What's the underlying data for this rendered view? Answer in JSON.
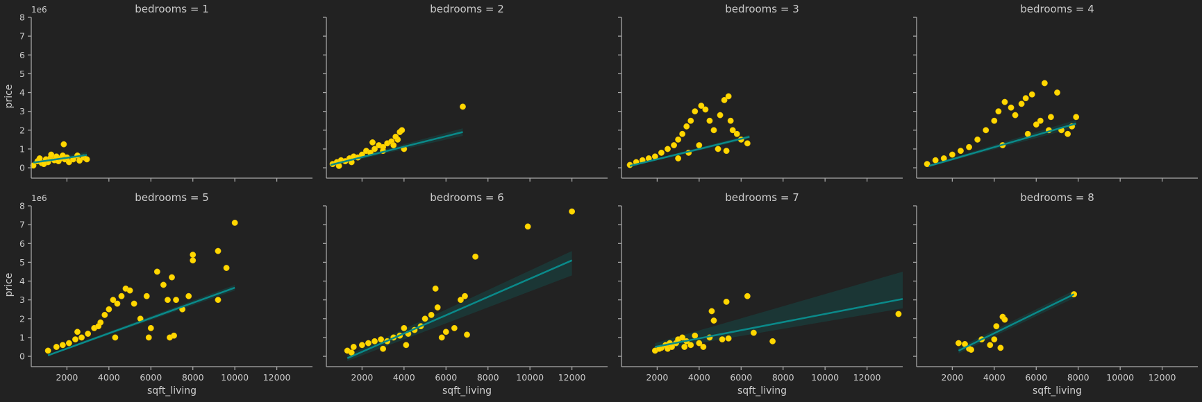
{
  "colors": {
    "background": "#222222",
    "points": "#ffd700",
    "fit_line": "#0a8a8a",
    "ci_band": "#1a3a38",
    "axis": "#aaaaaa",
    "text": "#cccccc"
  },
  "chart_data": {
    "type": "scatter",
    "facet_variable": "bedrooms",
    "layout": {
      "rows": 2,
      "cols": 4
    },
    "shared_axes": {
      "sharex": true,
      "sharey": true
    },
    "xlabel": "sqft_living",
    "ylabel": "price",
    "y_offset_text": "1e6",
    "xlim": [
      300,
      13700
    ],
    "ylim": [
      -0.55,
      8.0
    ],
    "x_ticks": [
      2000,
      4000,
      6000,
      8000,
      10000,
      12000
    ],
    "x_tick_labels": [
      "2000",
      "4000",
      "6000",
      "8000",
      "10000",
      "12000"
    ],
    "y_ticks": [
      0,
      1,
      2,
      3,
      4,
      5,
      6,
      7,
      8
    ],
    "y_tick_labels": [
      "0",
      "1",
      "2",
      "3",
      "4",
      "5",
      "6",
      "7",
      "8"
    ],
    "grid": false,
    "panels": [
      {
        "title": "bedrooms = 1",
        "points": [
          [
            400,
            0.12
          ],
          [
            600,
            0.35
          ],
          [
            800,
            0.25
          ],
          [
            1000,
            0.45
          ],
          [
            1100,
            0.3
          ],
          [
            1200,
            0.5
          ],
          [
            1300,
            0.55
          ],
          [
            1400,
            0.4
          ],
          [
            1500,
            0.6
          ],
          [
            1600,
            0.35
          ],
          [
            1700,
            0.5
          ],
          [
            1800,
            0.65
          ],
          [
            1900,
            0.45
          ],
          [
            2000,
            0.55
          ],
          [
            1850,
            1.25
          ],
          [
            2100,
            0.3
          ],
          [
            2300,
            0.45
          ],
          [
            2500,
            0.65
          ],
          [
            2600,
            0.38
          ],
          [
            2800,
            0.55
          ],
          [
            2950,
            0.45
          ],
          [
            900,
            0.2
          ],
          [
            1250,
            0.7
          ],
          [
            700,
            0.5
          ]
        ],
        "fit": [
          [
            400,
            0.28
          ],
          [
            2950,
            0.68
          ]
        ],
        "ci": [
          [
            400,
            0.22,
            0.34
          ],
          [
            2950,
            0.52,
            0.84
          ]
        ]
      },
      {
        "title": "bedrooms = 2",
        "points": [
          [
            600,
            0.2
          ],
          [
            800,
            0.3
          ],
          [
            1000,
            0.4
          ],
          [
            1200,
            0.35
          ],
          [
            1400,
            0.5
          ],
          [
            1600,
            0.6
          ],
          [
            1800,
            0.55
          ],
          [
            2000,
            0.7
          ],
          [
            2200,
            0.9
          ],
          [
            2400,
            0.8
          ],
          [
            2600,
            1.0
          ],
          [
            2800,
            1.2
          ],
          [
            3000,
            1.1
          ],
          [
            3200,
            1.3
          ],
          [
            3400,
            1.4
          ],
          [
            3500,
            1.2
          ],
          [
            3700,
            1.5
          ],
          [
            3800,
            1.9
          ],
          [
            3900,
            2.0
          ],
          [
            4000,
            1.0
          ],
          [
            3600,
            1.65
          ],
          [
            3000,
            0.9
          ],
          [
            2500,
            1.35
          ],
          [
            1500,
            0.3
          ],
          [
            6800,
            3.25
          ],
          [
            900,
            0.1
          ]
        ],
        "fit": [
          [
            500,
            0.15
          ],
          [
            6800,
            1.9
          ]
        ],
        "ci": [
          [
            500,
            0.1,
            0.2
          ],
          [
            6800,
            1.7,
            2.1
          ]
        ]
      },
      {
        "title": "bedrooms = 3",
        "points": [
          [
            700,
            0.15
          ],
          [
            1000,
            0.3
          ],
          [
            1300,
            0.4
          ],
          [
            1600,
            0.5
          ],
          [
            1900,
            0.6
          ],
          [
            2200,
            0.8
          ],
          [
            2500,
            1.0
          ],
          [
            2800,
            1.2
          ],
          [
            3000,
            1.5
          ],
          [
            3200,
            1.8
          ],
          [
            3400,
            2.2
          ],
          [
            3600,
            2.5
          ],
          [
            3800,
            3.0
          ],
          [
            4100,
            3.3
          ],
          [
            4300,
            3.1
          ],
          [
            4500,
            2.5
          ],
          [
            4700,
            2.0
          ],
          [
            5000,
            2.8
          ],
          [
            5200,
            3.6
          ],
          [
            5400,
            3.8
          ],
          [
            5500,
            2.5
          ],
          [
            5600,
            2.0
          ],
          [
            5800,
            1.8
          ],
          [
            6000,
            1.5
          ],
          [
            6300,
            1.3
          ],
          [
            4000,
            1.2
          ],
          [
            3500,
            0.8
          ],
          [
            3000,
            0.5
          ],
          [
            4900,
            1.0
          ],
          [
            5300,
            0.9
          ]
        ],
        "fit": [
          [
            700,
            0.1
          ],
          [
            6400,
            1.65
          ]
        ],
        "ci": [
          [
            700,
            0.06,
            0.14
          ],
          [
            6400,
            1.55,
            1.75
          ]
        ]
      },
      {
        "title": "bedrooms = 4",
        "points": [
          [
            800,
            0.2
          ],
          [
            1200,
            0.4
          ],
          [
            1600,
            0.5
          ],
          [
            2000,
            0.7
          ],
          [
            2400,
            0.9
          ],
          [
            2800,
            1.1
          ],
          [
            3200,
            1.5
          ],
          [
            3600,
            2.0
          ],
          [
            4000,
            2.5
          ],
          [
            4200,
            3.0
          ],
          [
            4500,
            3.5
          ],
          [
            4800,
            3.2
          ],
          [
            5000,
            2.8
          ],
          [
            5300,
            3.4
          ],
          [
            5500,
            3.7
          ],
          [
            5800,
            3.9
          ],
          [
            6200,
            2.5
          ],
          [
            6400,
            4.5
          ],
          [
            6700,
            2.7
          ],
          [
            7000,
            4.0
          ],
          [
            7200,
            2.0
          ],
          [
            7500,
            1.8
          ],
          [
            7700,
            2.2
          ],
          [
            7900,
            2.7
          ],
          [
            6000,
            2.3
          ],
          [
            5600,
            1.8
          ],
          [
            6600,
            2.0
          ],
          [
            4400,
            1.2
          ]
        ],
        "fit": [
          [
            900,
            0.1
          ],
          [
            7900,
            2.35
          ]
        ],
        "ci": [
          [
            900,
            0.05,
            0.15
          ],
          [
            7900,
            2.15,
            2.55
          ]
        ]
      },
      {
        "title": "bedrooms = 5",
        "points": [
          [
            1100,
            0.3
          ],
          [
            1500,
            0.5
          ],
          [
            1800,
            0.6
          ],
          [
            2100,
            0.7
          ],
          [
            2400,
            0.9
          ],
          [
            2700,
            1.0
          ],
          [
            3000,
            1.2
          ],
          [
            3300,
            1.5
          ],
          [
            3600,
            1.8
          ],
          [
            3800,
            2.2
          ],
          [
            4000,
            2.5
          ],
          [
            4200,
            3.0
          ],
          [
            4400,
            2.8
          ],
          [
            4600,
            3.2
          ],
          [
            4800,
            3.6
          ],
          [
            5000,
            3.5
          ],
          [
            5200,
            2.8
          ],
          [
            5500,
            2.0
          ],
          [
            5800,
            3.2
          ],
          [
            6000,
            1.5
          ],
          [
            6300,
            4.5
          ],
          [
            6600,
            3.8
          ],
          [
            6900,
            1.0
          ],
          [
            7000,
            4.2
          ],
          [
            7200,
            3.0
          ],
          [
            7500,
            2.5
          ],
          [
            7800,
            3.2
          ],
          [
            8000,
            5.4
          ],
          [
            8000,
            5.1
          ],
          [
            9200,
            5.6
          ],
          [
            9600,
            4.7
          ],
          [
            10000,
            7.1
          ],
          [
            9200,
            3.0
          ],
          [
            4300,
            1.0
          ],
          [
            5900,
            1.0
          ],
          [
            7100,
            1.1
          ],
          [
            6800,
            3.0
          ],
          [
            2500,
            1.3
          ],
          [
            3500,
            1.6
          ]
        ],
        "fit": [
          [
            1100,
            0.05
          ],
          [
            10000,
            3.65
          ]
        ],
        "ci": [
          [
            1100,
            0.0,
            0.1
          ],
          [
            10000,
            3.5,
            3.8
          ]
        ]
      },
      {
        "title": "bedrooms = 6",
        "points": [
          [
            1300,
            0.3
          ],
          [
            1600,
            0.5
          ],
          [
            2000,
            0.6
          ],
          [
            2300,
            0.7
          ],
          [
            2600,
            0.8
          ],
          [
            2900,
            0.9
          ],
          [
            3200,
            0.8
          ],
          [
            3500,
            1.0
          ],
          [
            3800,
            1.1
          ],
          [
            4000,
            1.5
          ],
          [
            4200,
            1.2
          ],
          [
            4500,
            1.4
          ],
          [
            4800,
            1.6
          ],
          [
            5000,
            2.0
          ],
          [
            5300,
            2.2
          ],
          [
            5500,
            3.6
          ],
          [
            5800,
            1.0
          ],
          [
            6000,
            1.3
          ],
          [
            6400,
            1.5
          ],
          [
            6700,
            3.0
          ],
          [
            6900,
            3.2
          ],
          [
            7000,
            1.15
          ],
          [
            7400,
            5.3
          ],
          [
            9900,
            6.9
          ],
          [
            12000,
            7.7
          ],
          [
            1500,
            0.2
          ],
          [
            3000,
            0.4
          ],
          [
            4100,
            0.6
          ],
          [
            5600,
            2.6
          ]
        ],
        "fit": [
          [
            1300,
            -0.1
          ],
          [
            12000,
            5.1
          ]
        ],
        "ci": [
          [
            1300,
            -0.25,
            0.05
          ],
          [
            12000,
            4.3,
            5.6
          ]
        ]
      },
      {
        "title": "bedrooms = 7",
        "points": [
          [
            1900,
            0.3
          ],
          [
            2200,
            0.45
          ],
          [
            2400,
            0.6
          ],
          [
            2500,
            0.4
          ],
          [
            2700,
            0.5
          ],
          [
            2900,
            0.7
          ],
          [
            3000,
            0.9
          ],
          [
            3200,
            1.0
          ],
          [
            3400,
            0.8
          ],
          [
            3600,
            0.6
          ],
          [
            3800,
            1.1
          ],
          [
            4000,
            0.7
          ],
          [
            4200,
            0.5
          ],
          [
            4500,
            1.0
          ],
          [
            4600,
            2.4
          ],
          [
            4700,
            1.9
          ],
          [
            5100,
            0.9
          ],
          [
            5300,
            2.9
          ],
          [
            5400,
            0.95
          ],
          [
            6300,
            3.2
          ],
          [
            6600,
            1.25
          ],
          [
            7500,
            0.8
          ],
          [
            13500,
            2.25
          ],
          [
            2100,
            0.4
          ],
          [
            2600,
            0.7
          ],
          [
            3300,
            0.5
          ]
        ],
        "fit": [
          [
            1900,
            0.5
          ],
          [
            13700,
            3.05
          ]
        ],
        "ci": [
          [
            1900,
            0.3,
            0.7
          ],
          [
            13700,
            2.55,
            4.5
          ]
        ]
      },
      {
        "title": "bedrooms = 8",
        "points": [
          [
            2300,
            0.7
          ],
          [
            2600,
            0.65
          ],
          [
            2800,
            0.4
          ],
          [
            2900,
            0.35
          ],
          [
            3400,
            0.9
          ],
          [
            3800,
            0.6
          ],
          [
            4000,
            0.9
          ],
          [
            4100,
            1.6
          ],
          [
            4300,
            0.45
          ],
          [
            4400,
            2.1
          ],
          [
            4500,
            1.95
          ],
          [
            7800,
            3.3
          ]
        ],
        "fit": [
          [
            2300,
            0.3
          ],
          [
            7800,
            3.3
          ]
        ],
        "ci": [
          [
            2300,
            0.15,
            0.45
          ],
          [
            7800,
            3.1,
            3.5
          ]
        ]
      }
    ]
  }
}
